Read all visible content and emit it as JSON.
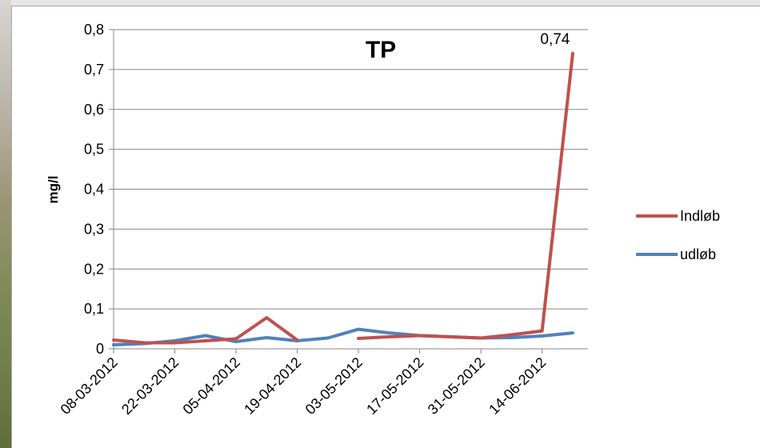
{
  "chart_data": {
    "type": "line",
    "title": "TP",
    "ylabel": "mg/l",
    "xlabel": "",
    "ylim": [
      0,
      0.8
    ],
    "yticks": [
      "0",
      "0,1",
      "0,2",
      "0,3",
      "0,4",
      "0,5",
      "0,6",
      "0,7",
      "0,8"
    ],
    "ytick_values": [
      0,
      0.1,
      0.2,
      0.3,
      0.4,
      0.5,
      0.6,
      0.7,
      0.8
    ],
    "xticks": [
      "08-03-2012",
      "22-03-2012",
      "05-04-2012",
      "19-04-2012",
      "03-05-2012",
      "17-05-2012",
      "31-05-2012",
      "14-06-2012"
    ],
    "x": [
      "08-03-2012",
      "15-03-2012",
      "22-03-2012",
      "29-03-2012",
      "05-04-2012",
      "12-04-2012",
      "19-04-2012",
      "26-04-2012",
      "03-05-2012",
      "10-05-2012",
      "17-05-2012",
      "24-05-2012",
      "31-05-2012",
      "07-06-2012",
      "14-06-2012",
      "21-06-2012"
    ],
    "series": [
      {
        "name": "Indløb",
        "color": "#c0504d",
        "values": [
          0.022,
          0.015,
          0.015,
          0.02,
          0.025,
          0.078,
          0.022,
          null,
          0.026,
          0.03,
          0.033,
          0.03,
          0.027,
          0.035,
          0.045,
          0.74
        ]
      },
      {
        "name": "udløb",
        "color": "#4f81bd",
        "values": [
          0.01,
          0.013,
          0.02,
          0.033,
          0.018,
          0.028,
          0.02,
          0.027,
          0.049,
          0.04,
          0.033,
          0.03,
          0.027,
          0.028,
          0.032,
          0.04
        ]
      }
    ],
    "data_labels": [
      {
        "series": "Indløb",
        "x": "21-06-2012",
        "text": "0,74"
      }
    ],
    "grid": true,
    "legend": "right"
  }
}
